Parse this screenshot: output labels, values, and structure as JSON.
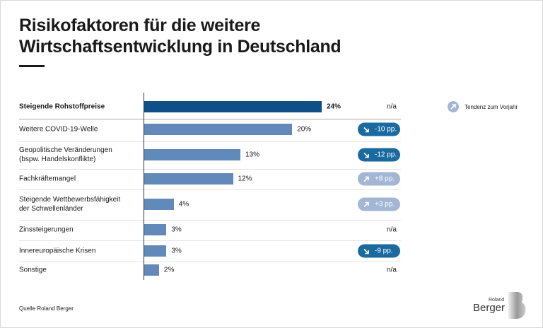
{
  "title_line1": "Risikofaktoren für die weitere",
  "title_line2": "Wirtschaftsentwicklung in Deutschland",
  "legend_label": "Tendenz zum Vorjahr",
  "source": "Quelle Roland Berger",
  "logo": {
    "line1": "Roland",
    "line2": "Berger"
  },
  "colors": {
    "highlight": "#0d4f86",
    "bar": "#6189b9",
    "badge_down": "#1a6aa0",
    "badge_up": "#a3b6d4"
  },
  "chart_data": {
    "type": "bar",
    "orientation": "horizontal",
    "xlim": [
      0,
      24
    ],
    "grid": false,
    "categories": [
      "Steigende Rohstoffpreise",
      "Weitere COVID-19-Welle",
      "Geopolitische Veränderungen\n(bspw. Handelskonflikte)",
      "Fachkräftemangel",
      "Steigende Wettbewerbsfähigkeit\nder Schwellenländer",
      "Zinssteigerungen",
      "Innereuropäische Krisen",
      "Sonstige"
    ],
    "values": [
      24,
      20,
      13,
      12,
      4,
      3,
      3,
      2
    ],
    "value_labels": [
      "24%",
      "20%",
      "13%",
      "12%",
      "4%",
      "3%",
      "3%",
      "2%"
    ],
    "trend": [
      {
        "label": "n/a",
        "direction": "none"
      },
      {
        "label": "-10 pp.",
        "direction": "down"
      },
      {
        "label": "-12 pp.",
        "direction": "down"
      },
      {
        "label": "+8 pp.",
        "direction": "up"
      },
      {
        "label": "+3 pp.",
        "direction": "up"
      },
      {
        "label": "n/a",
        "direction": "none"
      },
      {
        "label": "-9 pp.",
        "direction": "down"
      },
      {
        "label": "n/a",
        "direction": "none"
      }
    ]
  }
}
